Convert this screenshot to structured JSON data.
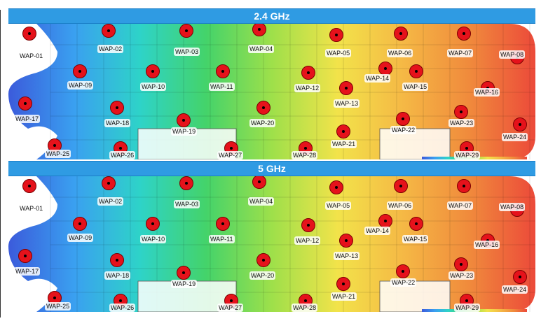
{
  "panels": [
    {
      "title": "2.4 GHz",
      "aps": [
        "WAP-01",
        "WAP-02",
        "WAP-03",
        "WAP-04",
        "WAP-05",
        "WAP-06",
        "WAP-07",
        "WAP-08",
        "WAP-09",
        "WAP-10",
        "WAP-11",
        "WAP-12",
        "WAP-13",
        "WAP-14",
        "WAP-15",
        "WAP-16",
        "WAP-17",
        "WAP-18",
        "WAP-19",
        "WAP-20",
        "WAP-21",
        "WAP-22",
        "WAP-23",
        "WAP-24",
        "WAP-25",
        "WAP-26",
        "WAP-27",
        "WAP-28",
        "WAP-29"
      ]
    },
    {
      "title": "5 GHz",
      "aps": [
        "WAP-01",
        "WAP-02",
        "WAP-03",
        "WAP-04",
        "WAP-05",
        "WAP-06",
        "WAP-07",
        "WAP-08",
        "WAP-09",
        "WAP-10",
        "WAP-11",
        "WAP-12",
        "WAP-13",
        "WAP-14",
        "WAP-15",
        "WAP-16",
        "WAP-17",
        "WAP-18",
        "WAP-19",
        "WAP-20",
        "WAP-21",
        "WAP-22",
        "WAP-23",
        "WAP-24",
        "WAP-25",
        "WAP-26",
        "WAP-27",
        "WAP-28",
        "WAP-29"
      ]
    }
  ],
  "colors": {
    "header": "#2f9be3",
    "ap_marker": "#e5121b",
    "gradient": [
      "#3b5bdb",
      "#3aa0f0",
      "#2ed3c8",
      "#44d36a",
      "#9ee04a",
      "#f2e34a",
      "#f5b845",
      "#f08a3c",
      "#ec4a3a"
    ]
  }
}
